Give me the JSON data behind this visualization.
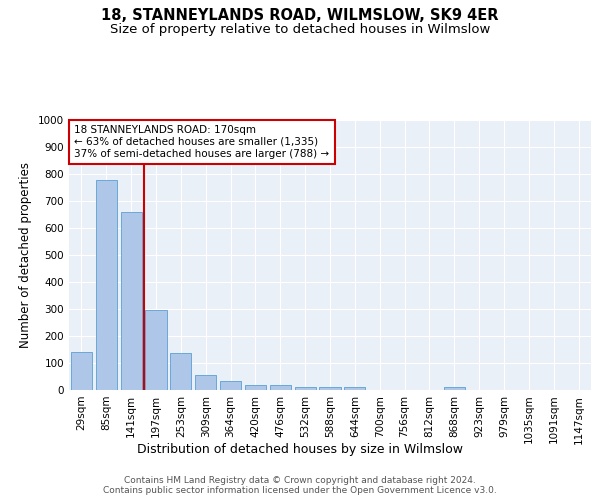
{
  "title": "18, STANNEYLANDS ROAD, WILMSLOW, SK9 4ER",
  "subtitle": "Size of property relative to detached houses in Wilmslow",
  "xlabel": "Distribution of detached houses by size in Wilmslow",
  "ylabel": "Number of detached properties",
  "categories": [
    "29sqm",
    "85sqm",
    "141sqm",
    "197sqm",
    "253sqm",
    "309sqm",
    "364sqm",
    "420sqm",
    "476sqm",
    "532sqm",
    "588sqm",
    "644sqm",
    "700sqm",
    "756sqm",
    "812sqm",
    "868sqm",
    "923sqm",
    "979sqm",
    "1035sqm",
    "1091sqm",
    "1147sqm"
  ],
  "values": [
    140,
    778,
    658,
    295,
    138,
    57,
    33,
    20,
    20,
    12,
    10,
    10,
    0,
    0,
    0,
    10,
    0,
    0,
    0,
    0,
    0
  ],
  "bar_color": "#aec6e8",
  "bar_edge_color": "#5a9fd4",
  "vline_x": 2.5,
  "vline_color": "#cc0000",
  "annotation_text": "18 STANNEYLANDS ROAD: 170sqm\n← 63% of detached houses are smaller (1,335)\n37% of semi-detached houses are larger (788) →",
  "annotation_box_color": "#ffffff",
  "annotation_box_edge": "#cc0000",
  "ylim": [
    0,
    1000
  ],
  "yticks": [
    0,
    100,
    200,
    300,
    400,
    500,
    600,
    700,
    800,
    900,
    1000
  ],
  "bg_color": "#eaf0f8",
  "footer": "Contains HM Land Registry data © Crown copyright and database right 2024.\nContains public sector information licensed under the Open Government Licence v3.0.",
  "title_fontsize": 10.5,
  "subtitle_fontsize": 9.5,
  "xlabel_fontsize": 9,
  "ylabel_fontsize": 8.5,
  "tick_fontsize": 7.5,
  "annotation_fontsize": 7.5,
  "footer_fontsize": 6.5
}
